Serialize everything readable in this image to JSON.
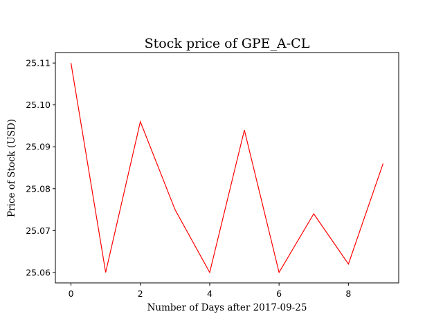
{
  "chart_data": {
    "type": "line",
    "title": "Stock price of GPE_A-CL",
    "xlabel": "Number of Days after 2017-09-25",
    "ylabel": "Price of Stock (USD)",
    "x": [
      0,
      1,
      2,
      3,
      4,
      5,
      6,
      7,
      8,
      9
    ],
    "series": [
      {
        "values": [
          25.11,
          25.06,
          25.096,
          25.075,
          25.06,
          25.094,
          25.06,
          25.074,
          25.062,
          25.086
        ],
        "color": "#ff0000"
      }
    ],
    "xlim": [
      -0.45,
      9.45
    ],
    "ylim": [
      25.0575,
      25.1125
    ],
    "xticks": [
      0,
      2,
      4,
      6,
      8
    ],
    "xtick_labels": [
      "0",
      "2",
      "4",
      "6",
      "8"
    ],
    "yticks": [
      25.06,
      25.07,
      25.08,
      25.09,
      25.1,
      25.11
    ],
    "ytick_labels": [
      "25.06",
      "25.07",
      "25.08",
      "25.09",
      "25.10",
      "25.11"
    ],
    "grid": false,
    "legend": "none"
  }
}
